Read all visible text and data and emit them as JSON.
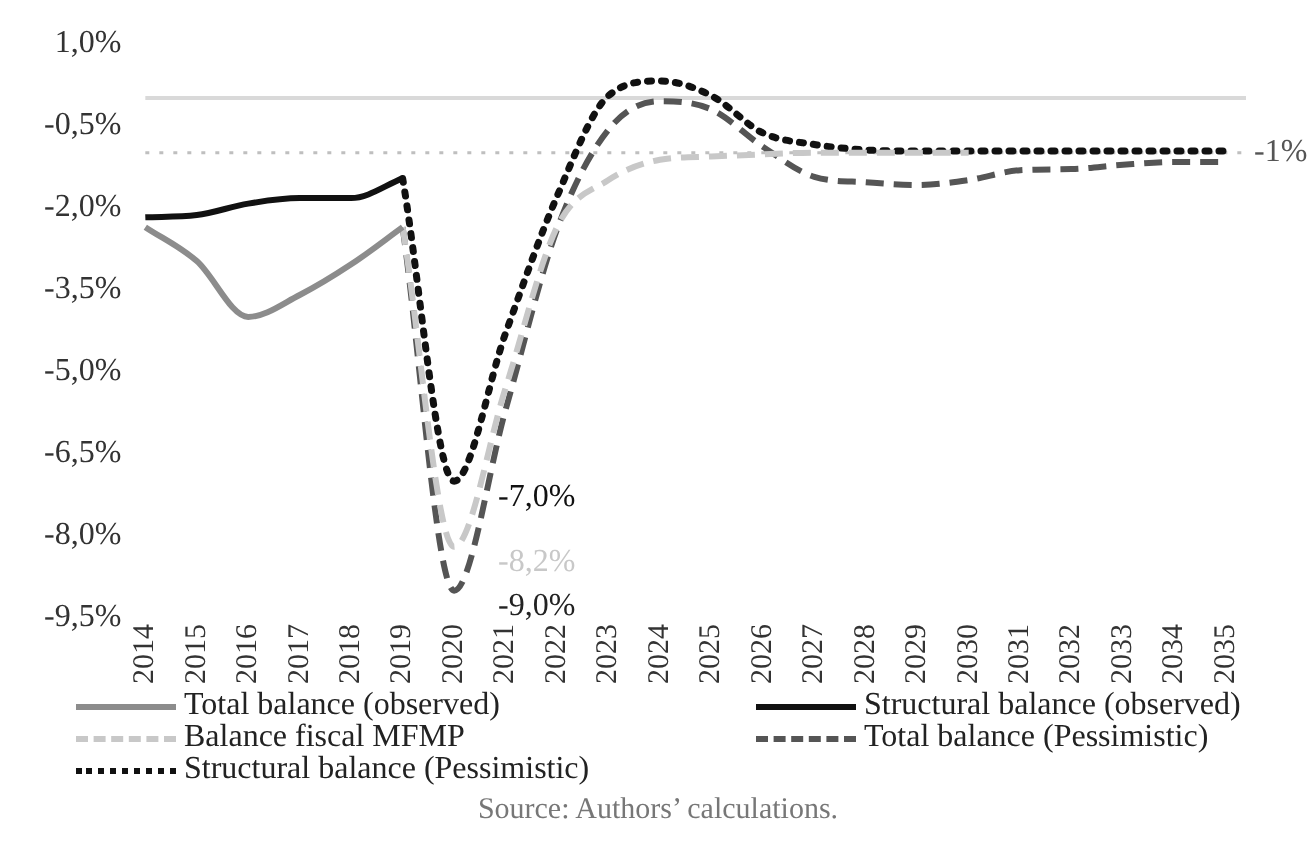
{
  "chart_data": {
    "type": "line",
    "categories": [
      "2014",
      "2015",
      "2016",
      "2017",
      "2018",
      "2019",
      "2020",
      "2021",
      "2022",
      "2023",
      "2024",
      "2025",
      "2026",
      "2027",
      "2028",
      "2029",
      "2030",
      "2031",
      "2032",
      "2033",
      "2034",
      "2035"
    ],
    "series": [
      {
        "name": "Total balance (observed)",
        "color": "#8c8c8c",
        "line_style": "solid",
        "values": [
          -2.36,
          -2.98,
          -4.0,
          -3.6,
          -3.04,
          -2.36,
          null,
          null,
          null,
          null,
          null,
          null,
          null,
          null,
          null,
          null,
          null,
          null,
          null,
          null,
          null,
          null
        ]
      },
      {
        "name": "Structural balance (observed)",
        "color": "#111111",
        "line_style": "solid",
        "values": [
          -2.18,
          -2.14,
          -1.93,
          -1.83,
          -1.83,
          -1.47,
          null,
          null,
          null,
          null,
          null,
          null,
          null,
          null,
          null,
          null,
          null,
          null,
          null,
          null,
          null,
          null
        ]
      },
      {
        "name": "Balance fiscal MFMP",
        "color": "#c8c8c8",
        "line_style": "dashed",
        "values": [
          null,
          null,
          null,
          null,
          null,
          -2.36,
          -8.2,
          -5.3,
          -2.36,
          -1.5,
          -1.13,
          -1.07,
          -1.03,
          -1.0,
          -1.0,
          -1.0,
          -1.0,
          null,
          null,
          null,
          null,
          null
        ]
      },
      {
        "name": "Total balance (Pessimistic)",
        "color": "#555555",
        "line_style": "dashed",
        "values": [
          null,
          null,
          null,
          null,
          null,
          -2.36,
          -9.0,
          -5.7,
          -2.4,
          -0.58,
          -0.06,
          -0.21,
          -0.89,
          -1.44,
          -1.54,
          -1.59,
          -1.5,
          -1.32,
          -1.3,
          -1.22,
          -1.17,
          -1.17
        ]
      },
      {
        "name": "Structural balance (Pessimistic)",
        "color": "#111111",
        "line_style": "dotted",
        "values": [
          null,
          null,
          null,
          null,
          null,
          -1.47,
          -7.0,
          -4.3,
          -1.8,
          0.04,
          0.31,
          0.04,
          -0.64,
          -0.85,
          -0.95,
          -0.97,
          -0.97,
          -0.97,
          -0.97,
          -0.97,
          -0.97,
          -0.97
        ]
      }
    ],
    "ylim": [
      -9.5,
      1.0
    ],
    "yticks": [
      {
        "value": 1.0,
        "label": "1,0%"
      },
      {
        "value": -0.5,
        "label": "-0,5%"
      },
      {
        "value": -2.0,
        "label": "-2,0%"
      },
      {
        "value": -3.5,
        "label": "-3,5%"
      },
      {
        "value": -5.0,
        "label": "-5,0%"
      },
      {
        "value": -6.5,
        "label": "-6,5%"
      },
      {
        "value": -8.0,
        "label": "-8,0%"
      },
      {
        "value": -9.5,
        "label": "-9,5%"
      }
    ],
    "ref_lines": [
      {
        "axis": "y",
        "value": 0,
        "label": null,
        "color": "#d9d9d9",
        "line_style": "solid"
      },
      {
        "axis": "y",
        "value": -1,
        "label": "-1%",
        "color": "#bfbfbf",
        "line_style": "dotted"
      }
    ],
    "annotations": [
      {
        "text": "-7,0%",
        "x": "2020",
        "y": -7.0
      },
      {
        "text": "-8,2%",
        "x": "2020",
        "y": -8.2
      },
      {
        "text": "-9,0%",
        "x": "2020",
        "y": -9.0
      },
      "Source: Authors’ calculations."
    ],
    "grid": false,
    "legend": "bottom",
    "marker": "none"
  }
}
